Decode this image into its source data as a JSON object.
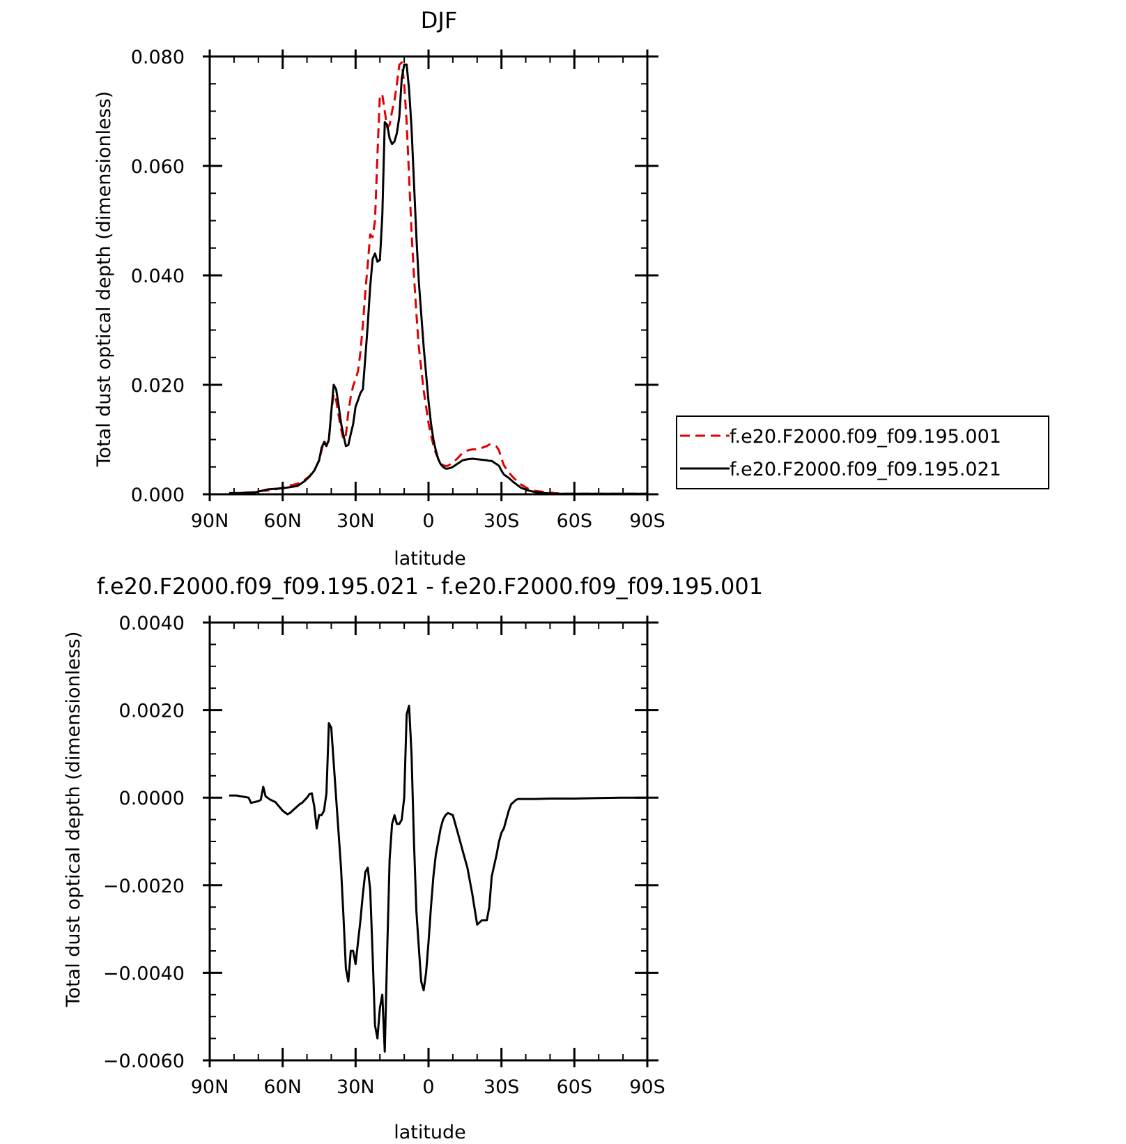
{
  "chart_data": [
    {
      "type": "line",
      "title": "DJF",
      "xlabel": "latitude",
      "ylabel": "Total dust optical depth (dimensionless)",
      "xlim": [
        90,
        -90
      ],
      "ylim": [
        0,
        0.08
      ],
      "x_ticks": [
        90,
        60,
        30,
        0,
        -30,
        -60,
        -90
      ],
      "x_tick_labels": [
        "90N",
        "60N",
        "30N",
        "0",
        "30S",
        "60S",
        "90S"
      ],
      "y_ticks": [
        0,
        0.02,
        0.04,
        0.06,
        0.08
      ],
      "y_tick_labels": [
        "0.000",
        "0.020",
        "0.040",
        "0.060",
        "0.080"
      ],
      "grid": false,
      "legend": "right",
      "series": [
        {
          "name": "f.e20.F2000.f09_f09.195.001",
          "color": "#e00000",
          "style": "dashed",
          "x": [
            82,
            78,
            75,
            72,
            69,
            66,
            63,
            60,
            57,
            54,
            51,
            49,
            47,
            45,
            44,
            43,
            42,
            41,
            40,
            39,
            38,
            37,
            36,
            35,
            34,
            33,
            32,
            31,
            30,
            29,
            28,
            27,
            26,
            25,
            24,
            23,
            22,
            21,
            20,
            19,
            18,
            17,
            16,
            15,
            14,
            13,
            12,
            11,
            10,
            9,
            8,
            7,
            6,
            5,
            4,
            3,
            2,
            1,
            0,
            -1,
            -2,
            -3,
            -4,
            -5,
            -6,
            -7,
            -8,
            -9,
            -10,
            -11,
            -12,
            -13,
            -14,
            -15,
            -16,
            -18,
            -20,
            -22,
            -24,
            -25,
            -26,
            -27,
            -28,
            -29,
            -30,
            -31,
            -33,
            -35,
            -38,
            -41,
            -44,
            -48,
            -52,
            -56,
            -60,
            -65,
            -70,
            -75,
            -80,
            -85,
            -90
          ],
          "y": [
            0.0002,
            0.0002,
            0.0003,
            0.0004,
            0.0006,
            0.0007,
            0.0009,
            0.0012,
            0.0016,
            0.0019,
            0.0026,
            0.0033,
            0.0043,
            0.0062,
            0.008,
            0.0098,
            0.009,
            0.0098,
            0.015,
            0.0183,
            0.0172,
            0.0145,
            0.012,
            0.01,
            0.0108,
            0.015,
            0.0178,
            0.0198,
            0.021,
            0.0225,
            0.026,
            0.031,
            0.037,
            0.042,
            0.0475,
            0.047,
            0.05,
            0.062,
            0.073,
            0.073,
            0.07,
            0.067,
            0.0675,
            0.07,
            0.072,
            0.075,
            0.0785,
            0.0789,
            0.075,
            0.068,
            0.058,
            0.048,
            0.04,
            0.033,
            0.027,
            0.023,
            0.019,
            0.016,
            0.013,
            0.0108,
            0.009,
            0.0075,
            0.0065,
            0.0058,
            0.0053,
            0.0052,
            0.0052,
            0.0055,
            0.0058,
            0.0062,
            0.0066,
            0.0071,
            0.0075,
            0.0078,
            0.008,
            0.0082,
            0.0082,
            0.0085,
            0.0088,
            0.0091,
            0.009,
            0.0089,
            0.0087,
            0.008,
            0.0065,
            0.0053,
            0.004,
            0.003,
            0.0018,
            0.001,
            0.0006,
            0.0004,
            0.0002,
            0.0001,
            0.0001,
            0.0001,
            0.0001,
            0.0001,
            0.0001,
            0.0001,
            0.0001
          ]
        },
        {
          "name": "f.e20.F2000.f09_f09.195.021",
          "color": "#000000",
          "style": "solid",
          "x": [
            82,
            78,
            75,
            72,
            69,
            66,
            63,
            60,
            57,
            54,
            51,
            49,
            47,
            45,
            44,
            43,
            42,
            41,
            40,
            39,
            38,
            37,
            36,
            35,
            34,
            33,
            32,
            31,
            30,
            29,
            28,
            27,
            26,
            25,
            24,
            23,
            22,
            21,
            20,
            19,
            18,
            17,
            16,
            15,
            14,
            13,
            12,
            11,
            10,
            9,
            8,
            7,
            6,
            5,
            4,
            3,
            2,
            1,
            0,
            -1,
            -2,
            -3,
            -4,
            -5,
            -6,
            -7,
            -8,
            -9,
            -10,
            -11,
            -12,
            -13,
            -14,
            -15,
            -16,
            -18,
            -20,
            -22,
            -24,
            -25,
            -26,
            -27,
            -28,
            -29,
            -30,
            -31,
            -33,
            -35,
            -38,
            -41,
            -44,
            -48,
            -52,
            -56,
            -60,
            -65,
            -70,
            -75,
            -80,
            -85,
            -90
          ],
          "y": [
            0.0002,
            0.0002,
            0.0003,
            0.0003,
            0.0006,
            0.0009,
            0.001,
            0.0011,
            0.0013,
            0.0015,
            0.0024,
            0.0032,
            0.0043,
            0.0062,
            0.0085,
            0.0095,
            0.0088,
            0.01,
            0.015,
            0.02,
            0.0192,
            0.0163,
            0.013,
            0.0108,
            0.0088,
            0.009,
            0.011,
            0.0128,
            0.016,
            0.0172,
            0.0185,
            0.0192,
            0.025,
            0.031,
            0.038,
            0.043,
            0.044,
            0.0425,
            0.0428,
            0.051,
            0.068,
            0.0675,
            0.065,
            0.064,
            0.0645,
            0.066,
            0.069,
            0.076,
            0.0785,
            0.0785,
            0.074,
            0.067,
            0.057,
            0.047,
            0.039,
            0.033,
            0.027,
            0.022,
            0.017,
            0.013,
            0.01,
            0.008,
            0.0064,
            0.0055,
            0.005,
            0.0047,
            0.0047,
            0.0048,
            0.005,
            0.0053,
            0.0056,
            0.0059,
            0.0062,
            0.0063,
            0.0064,
            0.0065,
            0.0064,
            0.0063,
            0.0062,
            0.0061,
            0.0061,
            0.0058,
            0.0055,
            0.0052,
            0.0043,
            0.0036,
            0.003,
            0.0022,
            0.0012,
            0.0007,
            0.0004,
            0.0002,
            0.0001,
            0.0001,
            0.0001,
            0.0001,
            0.0001,
            0.0001,
            0.0001,
            0.0001,
            0.0001
          ]
        }
      ]
    },
    {
      "type": "line",
      "title": "f.e20.F2000.f09_f09.195.021 - f.e20.F2000.f09_f09.195.001",
      "xlabel": "latitude",
      "ylabel": "Total dust optical depth (dimensionless)",
      "xlim": [
        90,
        -90
      ],
      "ylim": [
        -0.006,
        0.004
      ],
      "x_ticks": [
        90,
        60,
        30,
        0,
        -30,
        -60,
        -90
      ],
      "x_tick_labels": [
        "90N",
        "60N",
        "30N",
        "0",
        "30S",
        "60S",
        "90S"
      ],
      "y_ticks": [
        -0.006,
        -0.004,
        -0.002,
        0,
        0.002,
        0.004
      ],
      "y_tick_labels": [
        "-0.0060",
        "-0.0040",
        "-0.0020",
        "0.0000",
        "0.0020",
        "0.0040"
      ],
      "grid": false,
      "series": [
        {
          "color": "#000000",
          "style": "solid",
          "x": [
            82,
            79,
            74,
            73,
            70,
            69,
            68,
            67,
            65,
            63,
            60,
            58,
            57,
            55,
            53,
            52,
            50,
            49,
            48,
            47,
            46,
            45,
            44,
            43,
            42,
            41,
            40,
            39,
            38,
            37,
            36,
            35,
            34,
            33,
            32,
            31,
            30,
            29,
            28,
            27,
            26,
            25,
            24,
            23,
            22,
            21,
            20,
            19,
            18,
            17,
            16,
            15,
            14,
            13,
            12,
            11,
            10,
            9,
            8,
            7,
            6,
            5,
            4,
            3,
            2,
            1,
            0,
            -1,
            -2,
            -3,
            -4,
            -5,
            -6,
            -7,
            -8,
            -10,
            -12,
            -13,
            -14,
            -16,
            -18,
            -20,
            -22,
            -24,
            -25,
            -26,
            -28,
            -29,
            -30,
            -31,
            -32,
            -33,
            -34,
            -35,
            -36,
            -37,
            -38,
            -39,
            -40,
            -42,
            -44,
            -50,
            -60,
            -70,
            -80,
            -90
          ],
          "y": [
            5e-05,
            5e-05,
            0.0,
            -0.00012,
            -8e-05,
            -5e-05,
            0.00025,
            3e-05,
            -5e-05,
            -0.0001,
            -0.0003,
            -0.00038,
            -0.00035,
            -0.00025,
            -0.00015,
            -0.00012,
            -0.0,
            8e-05,
            0.0001,
            -0.0002,
            -0.0007,
            -0.0004,
            -0.0004,
            -0.0003,
            0.0001,
            0.0017,
            0.0016,
            0.0008,
            0.0,
            -0.0008,
            -0.0016,
            -0.0027,
            -0.0039,
            -0.0042,
            -0.0035,
            -0.0035,
            -0.0038,
            -0.0033,
            -0.0028,
            -0.0022,
            -0.0017,
            -0.0016,
            -0.0021,
            -0.0036,
            -0.0052,
            -0.0055,
            -0.0048,
            -0.0045,
            -0.0058,
            -0.0035,
            -0.0014,
            -0.0006,
            -0.0004,
            -0.0006,
            -0.0006,
            -0.0005,
            0.0,
            0.0019,
            0.0021,
            0.001,
            -0.001,
            -0.0026,
            -0.0034,
            -0.0042,
            -0.0044,
            -0.004,
            -0.0033,
            -0.0025,
            -0.0018,
            -0.0013,
            -0.001,
            -0.0007,
            -0.0005,
            -0.0004,
            -0.00035,
            -0.0004,
            -0.0008,
            -0.001,
            -0.0012,
            -0.0016,
            -0.0022,
            -0.0029,
            -0.0028,
            -0.0028,
            -0.0025,
            -0.0018,
            -0.0013,
            -0.001,
            -0.0008,
            -0.0007,
            -0.0005,
            -0.0003,
            -0.00015,
            -0.0001,
            -5e-05,
            -3e-05,
            -3e-05,
            -3e-05,
            -3e-05,
            -3e-05,
            -3e-05,
            -2e-05,
            -2e-05,
            -1e-05,
            0.0,
            0.0
          ]
        }
      ]
    }
  ]
}
